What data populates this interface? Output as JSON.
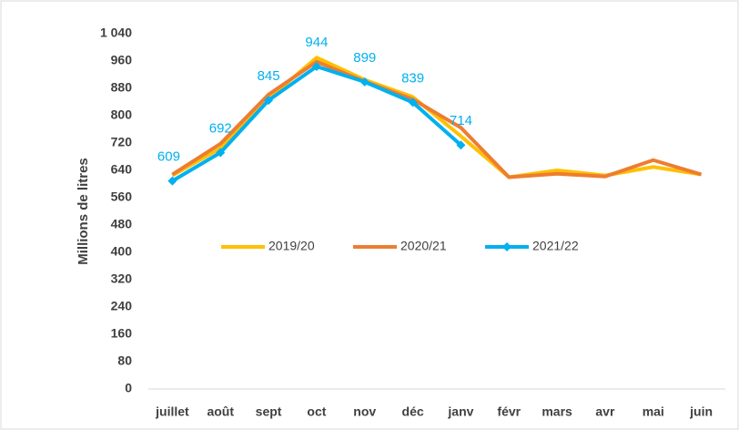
{
  "chart_data": {
    "type": "line",
    "y_label": "Millions de litres",
    "categories": [
      "juillet",
      "août",
      "sept",
      "oct",
      "nov",
      "déc",
      "janv",
      "févr",
      "mars",
      "avr",
      "mai",
      "juin"
    ],
    "series": [
      {
        "name": "2019/20",
        "color": "#FFC000",
        "values": [
          625,
          705,
          850,
          970,
          905,
          855,
          740,
          620,
          640,
          625,
          650,
          628
        ]
      },
      {
        "name": "2020/21",
        "color": "#ED7D31",
        "values": [
          628,
          718,
          862,
          958,
          900,
          848,
          765,
          620,
          630,
          622,
          670,
          628
        ]
      },
      {
        "name": "2021/22",
        "color": "#00B0F0",
        "values": [
          609,
          692,
          845,
          944,
          899,
          839,
          714,
          null,
          null,
          null,
          null,
          null
        ],
        "markers": true,
        "data_labels": true
      }
    ],
    "ylim": [
      0,
      1040
    ],
    "yticks": [
      0,
      80,
      160,
      240,
      320,
      400,
      480,
      560,
      640,
      720,
      800,
      880,
      960,
      {
        "value": 1040,
        "label": "1 040"
      }
    ],
    "grid": false,
    "legend": "center"
  }
}
